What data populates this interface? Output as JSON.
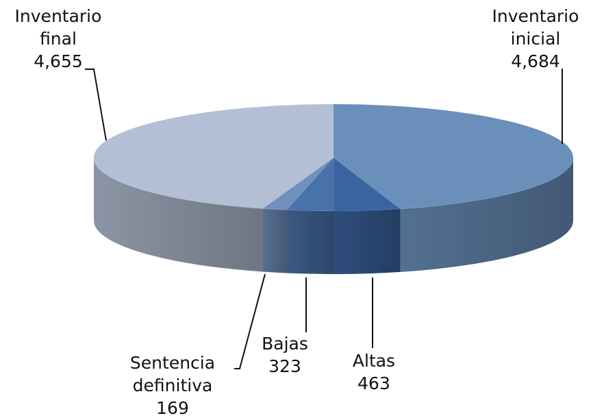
{
  "chart_data": {
    "type": "pie",
    "style": "3d",
    "categories": [
      "Inventario inicial",
      "Altas",
      "Bajas",
      "Sentencia definitiva",
      "Inventario final"
    ],
    "values": [
      4684,
      463,
      323,
      169,
      4655
    ],
    "labels": [
      {
        "name_lines": [
          "Inventario",
          "inicial"
        ],
        "value": "4,684"
      },
      {
        "name_lines": [
          "Altas"
        ],
        "value": "463"
      },
      {
        "name_lines": [
          "Bajas"
        ],
        "value": "323"
      },
      {
        "name_lines": [
          "Sentencia",
          "definitiva"
        ],
        "value": "169"
      },
      {
        "name_lines": [
          "Inventario",
          "final"
        ],
        "value": "4,655"
      }
    ],
    "colors": [
      "#6b8fbb",
      "#3a64a0",
      "#4a72aa",
      "#7090bd",
      "#b3bfd4"
    ],
    "legend": "none"
  }
}
